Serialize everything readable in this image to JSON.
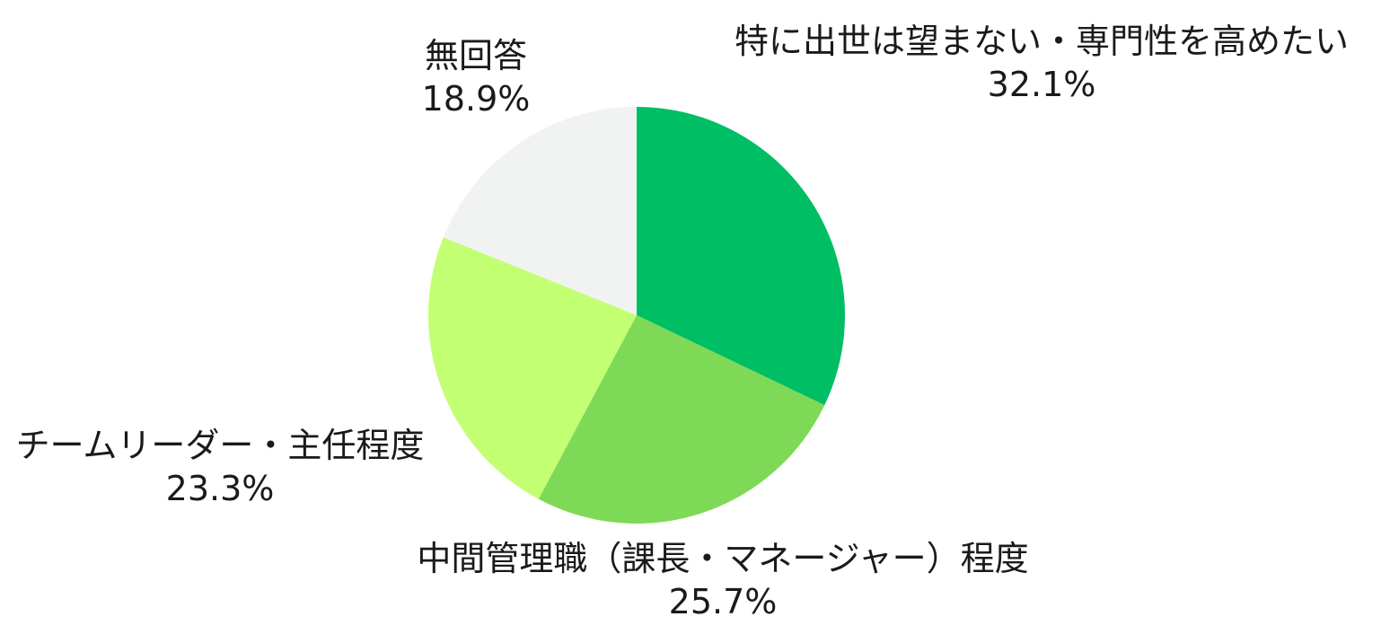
{
  "chart_data": {
    "type": "pie",
    "start_angle_deg": 0,
    "direction": "clockwise",
    "slices": [
      {
        "label": "特に出世は望まない・専門性を高めたい",
        "value": 32.1,
        "value_label": "32.1%",
        "color": "#00be64"
      },
      {
        "label": "中間管理職（課長・マネージャー）程度",
        "value": 25.7,
        "value_label": "25.7%",
        "color": "#7ed957"
      },
      {
        "label": "チームリーダー・主任程度",
        "value": 23.3,
        "value_label": "23.3%",
        "color": "#c2ff72"
      },
      {
        "label": "無回答",
        "value": 18.9,
        "value_label": "18.9%",
        "color": "#f1f3f2"
      }
    ]
  }
}
